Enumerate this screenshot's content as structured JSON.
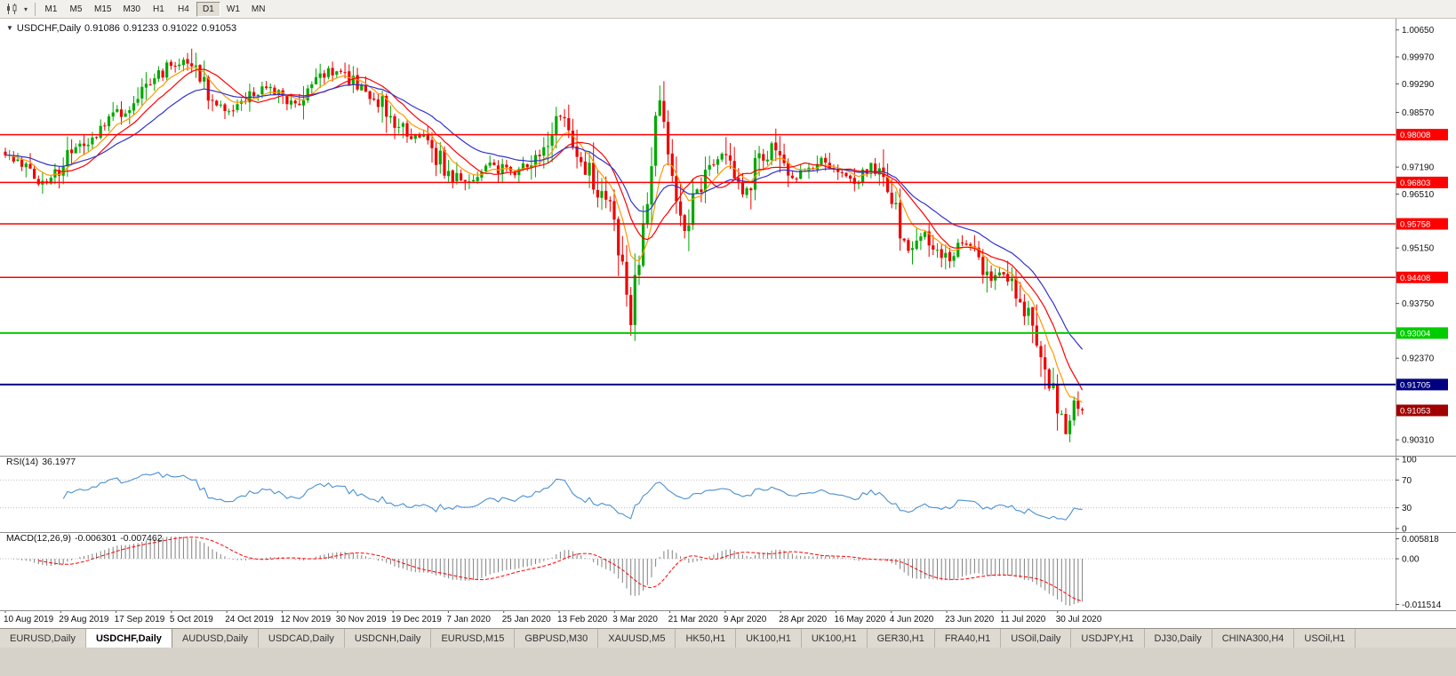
{
  "toolbar": {
    "chart_type_icon": "candlestick-chart-icon",
    "timeframes": [
      "M1",
      "M5",
      "M15",
      "M30",
      "H1",
      "H4",
      "D1",
      "W1",
      "MN"
    ],
    "active_timeframe": "D1"
  },
  "header": {
    "symbol": "USDCHF,Daily",
    "open": "0.91086",
    "high": "0.91233",
    "low": "0.91022",
    "close": "0.91053"
  },
  "price_axis": {
    "min": 0.9,
    "max": 1.008,
    "tick_values": [
      1.0065,
      0.9997,
      0.9929,
      0.9857,
      0.9789,
      0.9719,
      0.9651,
      0.9583,
      0.9515,
      0.9447,
      0.9375,
      0.9307,
      0.9237,
      0.9169,
      0.9099,
      0.9031
    ]
  },
  "hlines": [
    {
      "price": 0.98008,
      "label": "0.98008",
      "color": "#FF0000",
      "width": 1.5
    },
    {
      "price": 0.96803,
      "label": "0.96803",
      "color": "#FF0000",
      "width": 1.5
    },
    {
      "price": 0.95758,
      "label": "0.95758",
      "color": "#FF0000",
      "width": 1.5
    },
    {
      "price": 0.94408,
      "label": "0.94408",
      "color": "#FF0000",
      "width": 1.5
    },
    {
      "price": 0.93004,
      "label": "0.93004",
      "color": "#00CC00",
      "width": 2
    },
    {
      "price": 0.91705,
      "label": "0.91705",
      "color": "#000080",
      "width": 2
    }
  ],
  "current_price": {
    "label": "0.91053",
    "price": 0.91053,
    "badge_color": "#A00000"
  },
  "rsi_panel": {
    "label": "RSI(14)",
    "value": "36.1977",
    "period": 14,
    "ticks": [
      {
        "v": 100,
        "label": "100"
      },
      {
        "v": 70,
        "label": "70"
      },
      {
        "v": 30,
        "label": "30"
      },
      {
        "v": 0,
        "label": "0"
      }
    ],
    "levels": [
      70,
      30
    ],
    "line_color": "#4a90d2"
  },
  "macd_panel": {
    "label": "MACD(12,26,9)",
    "macd_value": "-0.006301",
    "signal_value": "-0.007462",
    "fast": 12,
    "slow": 26,
    "signal": 9,
    "tick_top": "0.005818",
    "tick_zero": "0.00",
    "tick_bottom": "-0.011514",
    "hist_color": "#808080",
    "signal_color": "#FF0000"
  },
  "date_axis": [
    "10 Aug 2019",
    "29 Aug 2019",
    "17 Sep 2019",
    "5 Oct 2019",
    "24 Oct 2019",
    "12 Nov 2019",
    "30 Nov 2019",
    "19 Dec 2019",
    "7 Jan 2020",
    "25 Jan 2020",
    "13 Feb 2020",
    "3 Mar 2020",
    "21 Mar 2020",
    "9 Apr 2020",
    "28 Apr 2020",
    "16 May 2020",
    "4 Jun 2020",
    "23 Jun 2020",
    "11 Jul 2020",
    "30 Jul 2020"
  ],
  "chart_data": {
    "type": "candlestick",
    "symbol": "USDCHF",
    "timeframe": "Daily",
    "candle_count": 261,
    "last_close": 0.91053,
    "up_color": "#00A800",
    "down_color": "#EE0000",
    "ma_lines": [
      {
        "name": "ma-fast-orange",
        "type": "ema",
        "period": 8,
        "color": "#FF9900"
      },
      {
        "name": "ma-mid-red",
        "type": "sma",
        "period": 13,
        "color": "#FF0000"
      },
      {
        "name": "ma-slow-blue",
        "type": "ema",
        "period": 26,
        "color": "#3333CC"
      }
    ],
    "close_anchors": [
      [
        0,
        0.9755
      ],
      [
        4,
        0.973
      ],
      [
        8,
        0.968
      ],
      [
        12,
        0.9705
      ],
      [
        16,
        0.9758
      ],
      [
        20,
        0.979
      ],
      [
        24,
        0.9825
      ],
      [
        28,
        0.986
      ],
      [
        32,
        0.99
      ],
      [
        36,
        0.9945
      ],
      [
        40,
        0.9975
      ],
      [
        44,
        0.9985
      ],
      [
        47,
        0.9935
      ],
      [
        50,
        0.989
      ],
      [
        54,
        0.986
      ],
      [
        58,
        0.9895
      ],
      [
        62,
        0.9925
      ],
      [
        66,
        0.99
      ],
      [
        70,
        0.988
      ],
      [
        74,
        0.9935
      ],
      [
        78,
        0.9965
      ],
      [
        82,
        0.995
      ],
      [
        86,
        0.992
      ],
      [
        90,
        0.989
      ],
      [
        94,
        0.9835
      ],
      [
        98,
        0.98
      ],
      [
        102,
        0.979
      ],
      [
        106,
        0.9715
      ],
      [
        110,
        0.968
      ],
      [
        114,
        0.97
      ],
      [
        118,
        0.9725
      ],
      [
        122,
        0.97
      ],
      [
        126,
        0.973
      ],
      [
        130,
        0.9775
      ],
      [
        134,
        0.984
      ],
      [
        137,
        0.98
      ],
      [
        140,
        0.973
      ],
      [
        143,
        0.966
      ],
      [
        146,
        0.961
      ],
      [
        148,
        0.952
      ],
      [
        150,
        0.938
      ],
      [
        151,
        0.933
      ],
      [
        152,
        0.942
      ],
      [
        153,
        0.948
      ],
      [
        154,
        0.956
      ],
      [
        156,
        0.975
      ],
      [
        157,
        0.987
      ],
      [
        158,
        0.989
      ],
      [
        160,
        0.976
      ],
      [
        162,
        0.964
      ],
      [
        164,
        0.956
      ],
      [
        166,
        0.963
      ],
      [
        168,
        0.968
      ],
      [
        170,
        0.972
      ],
      [
        173,
        0.9745
      ],
      [
        176,
        0.97
      ],
      [
        179,
        0.966
      ],
      [
        182,
        0.9735
      ],
      [
        185,
        0.9775
      ],
      [
        188,
        0.972
      ],
      [
        191,
        0.9695
      ],
      [
        194,
        0.9725
      ],
      [
        197,
        0.9745
      ],
      [
        200,
        0.972
      ],
      [
        203,
        0.97
      ],
      [
        206,
        0.968
      ],
      [
        209,
        0.972
      ],
      [
        212,
        0.97
      ],
      [
        214,
        0.964
      ],
      [
        216,
        0.956
      ],
      [
        218,
        0.95
      ],
      [
        220,
        0.953
      ],
      [
        222,
        0.956
      ],
      [
        224,
        0.953
      ],
      [
        226,
        0.95
      ],
      [
        228,
        0.948
      ],
      [
        230,
        0.951
      ],
      [
        232,
        0.953
      ],
      [
        234,
        0.95
      ],
      [
        236,
        0.947
      ],
      [
        238,
        0.944
      ],
      [
        240,
        0.945
      ],
      [
        242,
        0.943
      ],
      [
        244,
        0.94
      ],
      [
        246,
        0.936
      ],
      [
        248,
        0.932
      ],
      [
        250,
        0.925
      ],
      [
        252,
        0.918
      ],
      [
        254,
        0.913
      ],
      [
        255,
        0.908
      ],
      [
        256,
        0.906
      ],
      [
        257,
        0.91
      ],
      [
        258,
        0.914
      ],
      [
        259,
        0.911
      ],
      [
        260,
        0.91053
      ]
    ]
  },
  "tabs": [
    {
      "label": "EURUSD,Daily",
      "active": false
    },
    {
      "label": "USDCHF,Daily",
      "active": true
    },
    {
      "label": "AUDUSD,Daily",
      "active": false
    },
    {
      "label": "USDCAD,Daily",
      "active": false
    },
    {
      "label": "USDCNH,Daily",
      "active": false
    },
    {
      "label": "EURUSD,M15",
      "active": false
    },
    {
      "label": "GBPUSD,M30",
      "active": false
    },
    {
      "label": "XAUUSD,M5",
      "active": false
    },
    {
      "label": "HK50,H1",
      "active": false
    },
    {
      "label": "UK100,H1",
      "active": false
    },
    {
      "label": "UK100,H1",
      "active": false
    },
    {
      "label": "GER30,H1",
      "active": false
    },
    {
      "label": "FRA40,H1",
      "active": false
    },
    {
      "label": "USOil,Daily",
      "active": false
    },
    {
      "label": "USDJPY,H1",
      "active": false
    },
    {
      "label": "DJ30,Daily",
      "active": false
    },
    {
      "label": "CHINA300,H4",
      "active": false
    },
    {
      "label": "USOil,H1",
      "active": false
    }
  ]
}
